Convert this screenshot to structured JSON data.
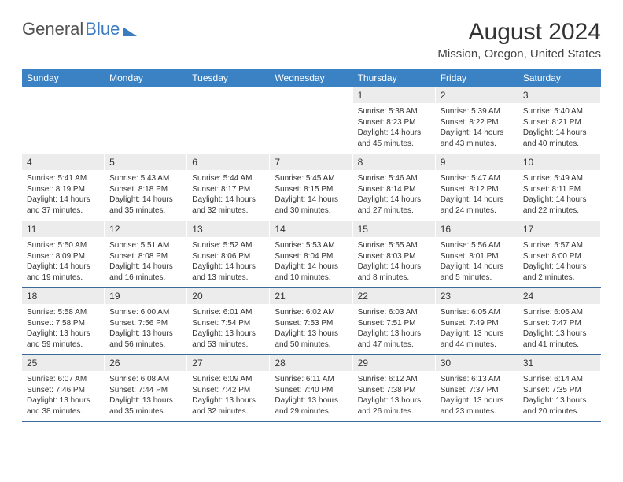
{
  "logo": {
    "word1": "General",
    "word2": "Blue"
  },
  "title": "August 2024",
  "location": "Mission, Oregon, United States",
  "colors": {
    "header_bg": "#3b82c4",
    "header_text": "#ffffff",
    "daynum_bg": "#ececec",
    "week_border": "#3b6a9a",
    "logo_gray": "#525252",
    "logo_blue": "#3b7bbf"
  },
  "weekdays": [
    "Sunday",
    "Monday",
    "Tuesday",
    "Wednesday",
    "Thursday",
    "Friday",
    "Saturday"
  ],
  "weeks": [
    [
      {
        "n": "",
        "lines": []
      },
      {
        "n": "",
        "lines": []
      },
      {
        "n": "",
        "lines": []
      },
      {
        "n": "",
        "lines": []
      },
      {
        "n": "1",
        "lines": [
          "Sunrise: 5:38 AM",
          "Sunset: 8:23 PM",
          "Daylight: 14 hours and 45 minutes."
        ]
      },
      {
        "n": "2",
        "lines": [
          "Sunrise: 5:39 AM",
          "Sunset: 8:22 PM",
          "Daylight: 14 hours and 43 minutes."
        ]
      },
      {
        "n": "3",
        "lines": [
          "Sunrise: 5:40 AM",
          "Sunset: 8:21 PM",
          "Daylight: 14 hours and 40 minutes."
        ]
      }
    ],
    [
      {
        "n": "4",
        "lines": [
          "Sunrise: 5:41 AM",
          "Sunset: 8:19 PM",
          "Daylight: 14 hours and 37 minutes."
        ]
      },
      {
        "n": "5",
        "lines": [
          "Sunrise: 5:43 AM",
          "Sunset: 8:18 PM",
          "Daylight: 14 hours and 35 minutes."
        ]
      },
      {
        "n": "6",
        "lines": [
          "Sunrise: 5:44 AM",
          "Sunset: 8:17 PM",
          "Daylight: 14 hours and 32 minutes."
        ]
      },
      {
        "n": "7",
        "lines": [
          "Sunrise: 5:45 AM",
          "Sunset: 8:15 PM",
          "Daylight: 14 hours and 30 minutes."
        ]
      },
      {
        "n": "8",
        "lines": [
          "Sunrise: 5:46 AM",
          "Sunset: 8:14 PM",
          "Daylight: 14 hours and 27 minutes."
        ]
      },
      {
        "n": "9",
        "lines": [
          "Sunrise: 5:47 AM",
          "Sunset: 8:12 PM",
          "Daylight: 14 hours and 24 minutes."
        ]
      },
      {
        "n": "10",
        "lines": [
          "Sunrise: 5:49 AM",
          "Sunset: 8:11 PM",
          "Daylight: 14 hours and 22 minutes."
        ]
      }
    ],
    [
      {
        "n": "11",
        "lines": [
          "Sunrise: 5:50 AM",
          "Sunset: 8:09 PM",
          "Daylight: 14 hours and 19 minutes."
        ]
      },
      {
        "n": "12",
        "lines": [
          "Sunrise: 5:51 AM",
          "Sunset: 8:08 PM",
          "Daylight: 14 hours and 16 minutes."
        ]
      },
      {
        "n": "13",
        "lines": [
          "Sunrise: 5:52 AM",
          "Sunset: 8:06 PM",
          "Daylight: 14 hours and 13 minutes."
        ]
      },
      {
        "n": "14",
        "lines": [
          "Sunrise: 5:53 AM",
          "Sunset: 8:04 PM",
          "Daylight: 14 hours and 10 minutes."
        ]
      },
      {
        "n": "15",
        "lines": [
          "Sunrise: 5:55 AM",
          "Sunset: 8:03 PM",
          "Daylight: 14 hours and 8 minutes."
        ]
      },
      {
        "n": "16",
        "lines": [
          "Sunrise: 5:56 AM",
          "Sunset: 8:01 PM",
          "Daylight: 14 hours and 5 minutes."
        ]
      },
      {
        "n": "17",
        "lines": [
          "Sunrise: 5:57 AM",
          "Sunset: 8:00 PM",
          "Daylight: 14 hours and 2 minutes."
        ]
      }
    ],
    [
      {
        "n": "18",
        "lines": [
          "Sunrise: 5:58 AM",
          "Sunset: 7:58 PM",
          "Daylight: 13 hours and 59 minutes."
        ]
      },
      {
        "n": "19",
        "lines": [
          "Sunrise: 6:00 AM",
          "Sunset: 7:56 PM",
          "Daylight: 13 hours and 56 minutes."
        ]
      },
      {
        "n": "20",
        "lines": [
          "Sunrise: 6:01 AM",
          "Sunset: 7:54 PM",
          "Daylight: 13 hours and 53 minutes."
        ]
      },
      {
        "n": "21",
        "lines": [
          "Sunrise: 6:02 AM",
          "Sunset: 7:53 PM",
          "Daylight: 13 hours and 50 minutes."
        ]
      },
      {
        "n": "22",
        "lines": [
          "Sunrise: 6:03 AM",
          "Sunset: 7:51 PM",
          "Daylight: 13 hours and 47 minutes."
        ]
      },
      {
        "n": "23",
        "lines": [
          "Sunrise: 6:05 AM",
          "Sunset: 7:49 PM",
          "Daylight: 13 hours and 44 minutes."
        ]
      },
      {
        "n": "24",
        "lines": [
          "Sunrise: 6:06 AM",
          "Sunset: 7:47 PM",
          "Daylight: 13 hours and 41 minutes."
        ]
      }
    ],
    [
      {
        "n": "25",
        "lines": [
          "Sunrise: 6:07 AM",
          "Sunset: 7:46 PM",
          "Daylight: 13 hours and 38 minutes."
        ]
      },
      {
        "n": "26",
        "lines": [
          "Sunrise: 6:08 AM",
          "Sunset: 7:44 PM",
          "Daylight: 13 hours and 35 minutes."
        ]
      },
      {
        "n": "27",
        "lines": [
          "Sunrise: 6:09 AM",
          "Sunset: 7:42 PM",
          "Daylight: 13 hours and 32 minutes."
        ]
      },
      {
        "n": "28",
        "lines": [
          "Sunrise: 6:11 AM",
          "Sunset: 7:40 PM",
          "Daylight: 13 hours and 29 minutes."
        ]
      },
      {
        "n": "29",
        "lines": [
          "Sunrise: 6:12 AM",
          "Sunset: 7:38 PM",
          "Daylight: 13 hours and 26 minutes."
        ]
      },
      {
        "n": "30",
        "lines": [
          "Sunrise: 6:13 AM",
          "Sunset: 7:37 PM",
          "Daylight: 13 hours and 23 minutes."
        ]
      },
      {
        "n": "31",
        "lines": [
          "Sunrise: 6:14 AM",
          "Sunset: 7:35 PM",
          "Daylight: 13 hours and 20 minutes."
        ]
      }
    ]
  ]
}
